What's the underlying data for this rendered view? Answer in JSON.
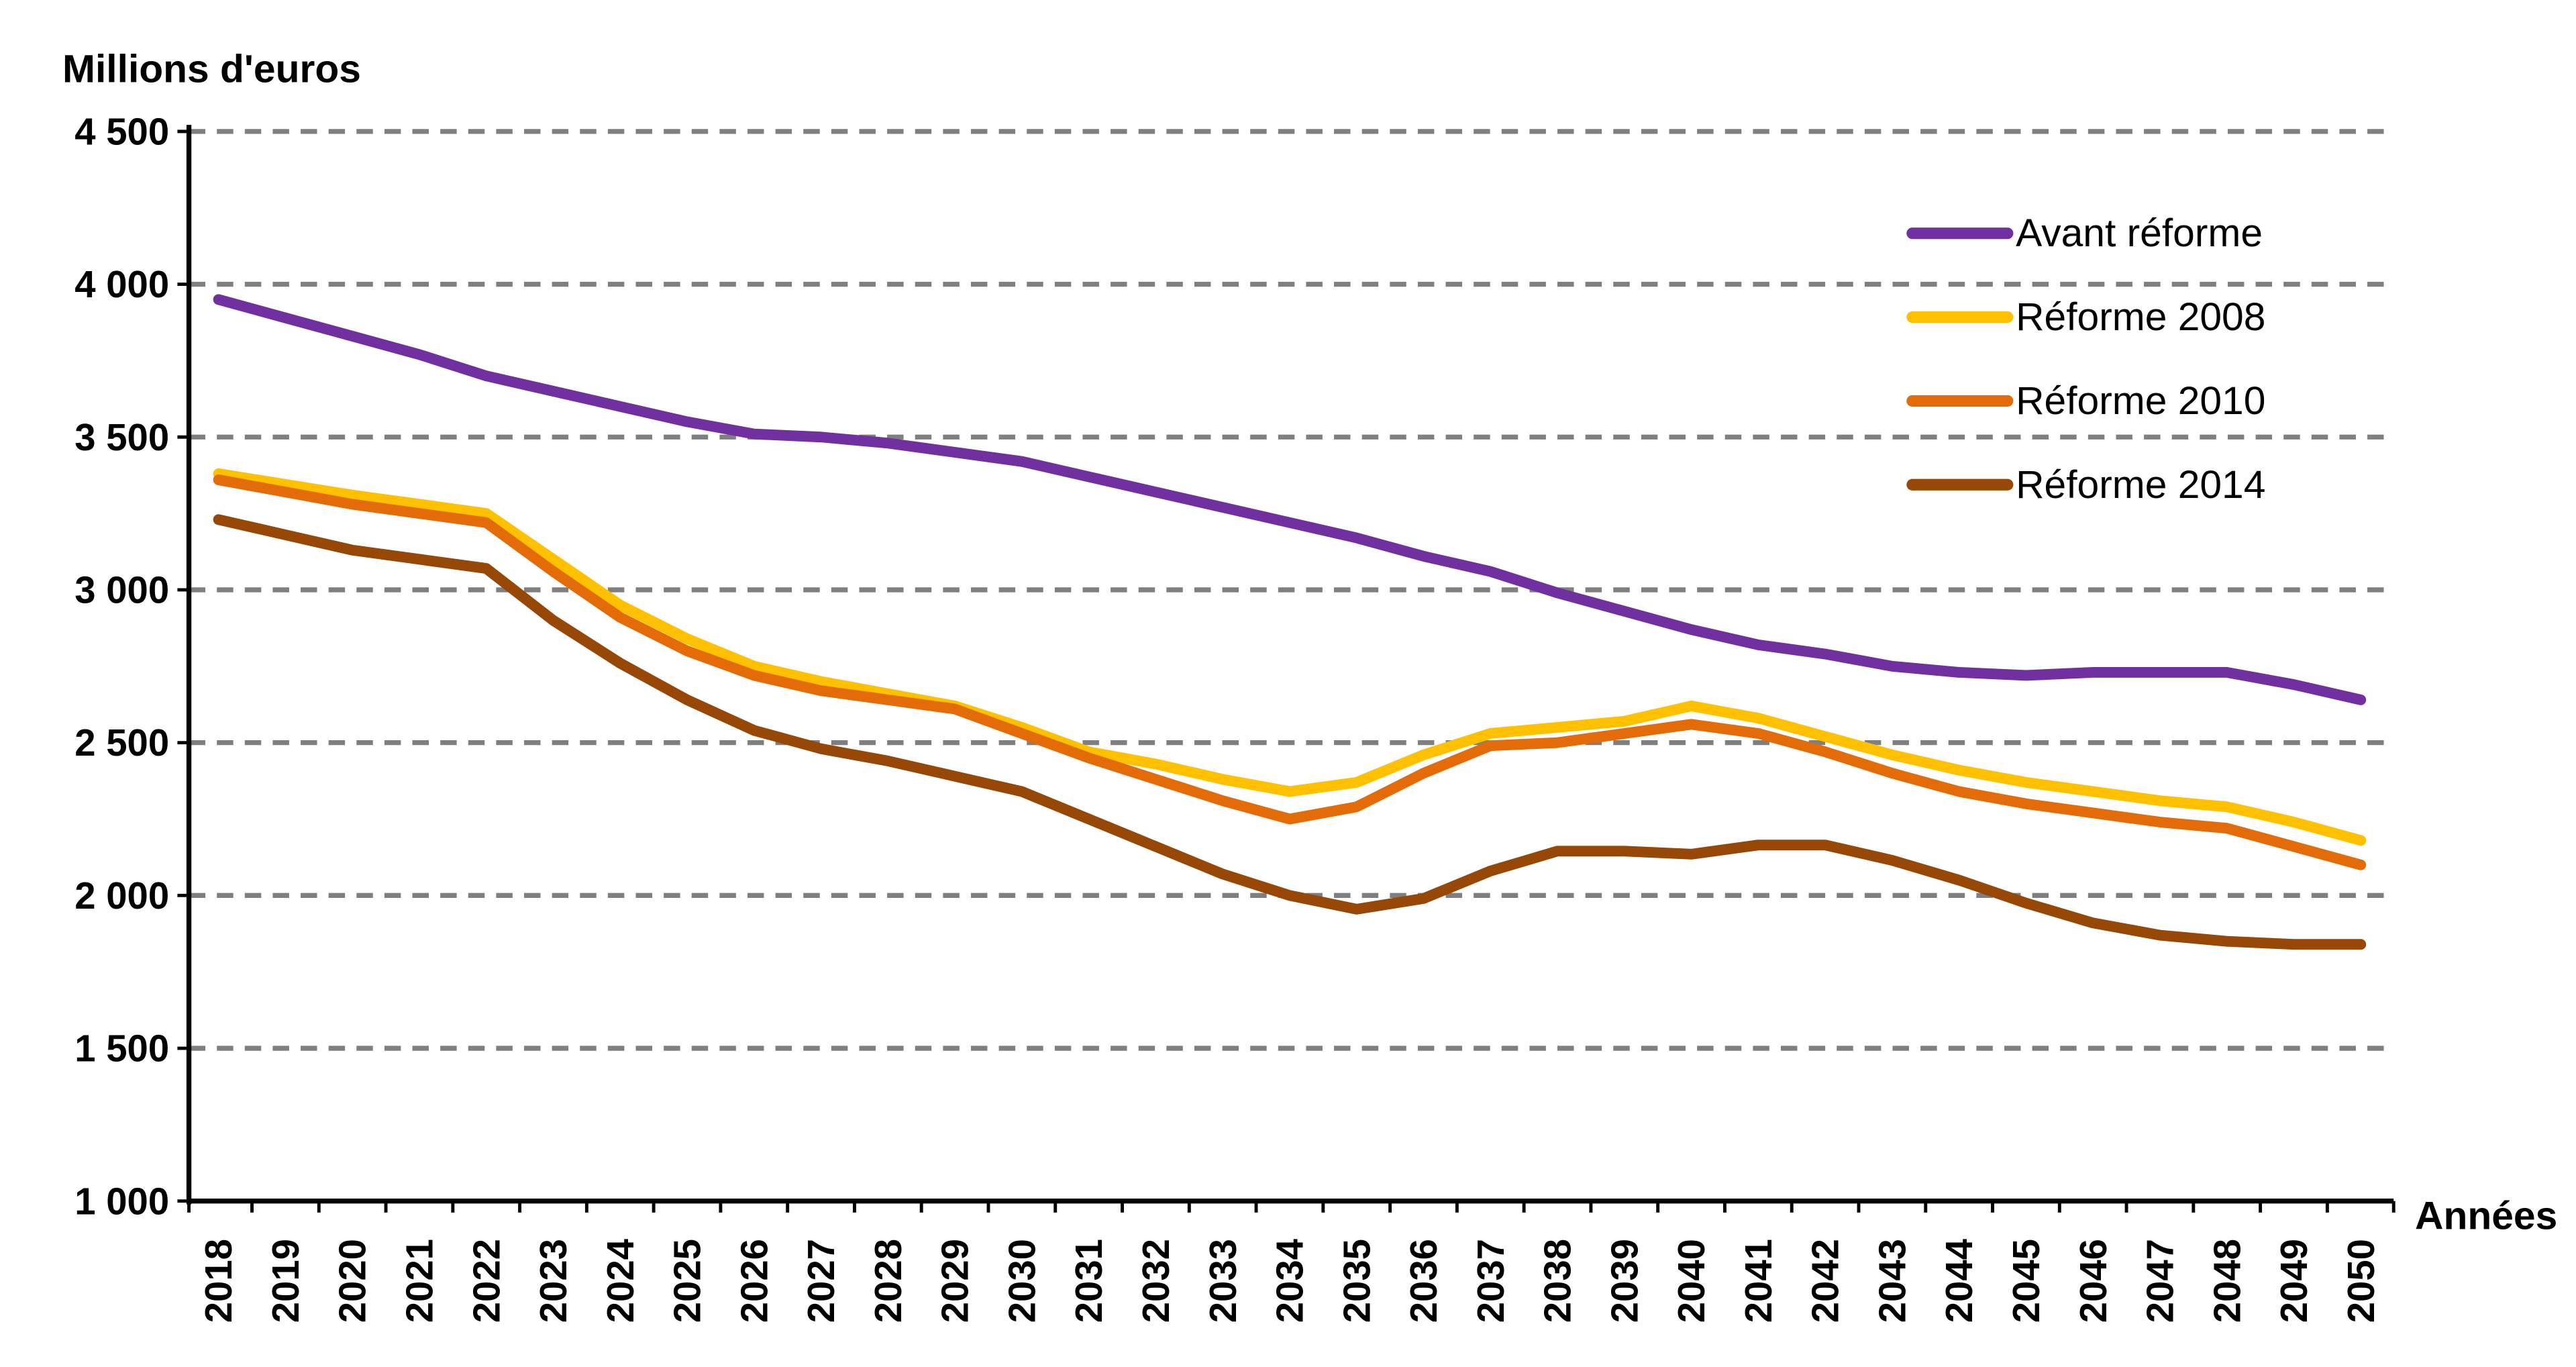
{
  "chart_data": {
    "type": "line",
    "title": "",
    "ylabel": "Millions d'euros",
    "xlabel": "Années",
    "ylim": [
      1000,
      4500
    ],
    "ytick_values": [
      1000,
      1500,
      2000,
      2500,
      3000,
      3500,
      4000,
      4500
    ],
    "ytick_labels": [
      "1 000",
      "1 500",
      "2 000",
      "2 500",
      "3 000",
      "3 500",
      "4 000",
      "4 500"
    ],
    "categories": [
      "2018",
      "2019",
      "2020",
      "2021",
      "2022",
      "2023",
      "2024",
      "2025",
      "2026",
      "2027",
      "2028",
      "2029",
      "2030",
      "2031",
      "2032",
      "2033",
      "2034",
      "2035",
      "2036",
      "2037",
      "2038",
      "2039",
      "2040",
      "2041",
      "2042",
      "2043",
      "2044",
      "2045",
      "2046",
      "2047",
      "2048",
      "2049",
      "2050"
    ],
    "grid": "horizontal-dashed",
    "legend_position": "inside-top-right",
    "colors": {
      "axis": "#000000",
      "gridline": "#7F7F7F",
      "background": "#FFFFFF",
      "text": "#000000"
    },
    "series": [
      {
        "name": "Avant réforme",
        "color": "#7030A0",
        "values": [
          3950,
          3890,
          3830,
          3770,
          3700,
          3650,
          3600,
          3550,
          3510,
          3500,
          3480,
          3450,
          3420,
          3370,
          3320,
          3270,
          3220,
          3170,
          3110,
          3060,
          2990,
          2930,
          2870,
          2820,
          2790,
          2750,
          2730,
          2720,
          2730,
          2730,
          2730,
          2690,
          2640
        ]
      },
      {
        "name": "Réforme 2008",
        "color": "#FFC000",
        "values": [
          3380,
          3345,
          3310,
          3280,
          3250,
          3100,
          2950,
          2840,
          2750,
          2700,
          2660,
          2620,
          2550,
          2470,
          2430,
          2380,
          2340,
          2370,
          2460,
          2530,
          2550,
          2570,
          2620,
          2580,
          2520,
          2460,
          2410,
          2370,
          2340,
          2310,
          2290,
          2240,
          2180
        ]
      },
      {
        "name": "Réforme 2010",
        "color": "#E36C09",
        "values": [
          3360,
          3320,
          3280,
          3250,
          3220,
          3060,
          2910,
          2800,
          2720,
          2670,
          2640,
          2610,
          2530,
          2450,
          2380,
          2310,
          2250,
          2290,
          2400,
          2490,
          2500,
          2530,
          2560,
          2530,
          2470,
          2400,
          2340,
          2300,
          2270,
          2240,
          2220,
          2160,
          2100
        ]
      },
      {
        "name": "Réforme 2014",
        "color": "#974706",
        "values": [
          3230,
          3180,
          3130,
          3100,
          3070,
          2900,
          2760,
          2640,
          2540,
          2480,
          2440,
          2390,
          2340,
          2250,
          2160,
          2070,
          2000,
          1955,
          1990,
          2080,
          2145,
          2145,
          2135,
          2165,
          2165,
          2115,
          2050,
          1975,
          1910,
          1870,
          1850,
          1840,
          1840
        ]
      }
    ]
  }
}
